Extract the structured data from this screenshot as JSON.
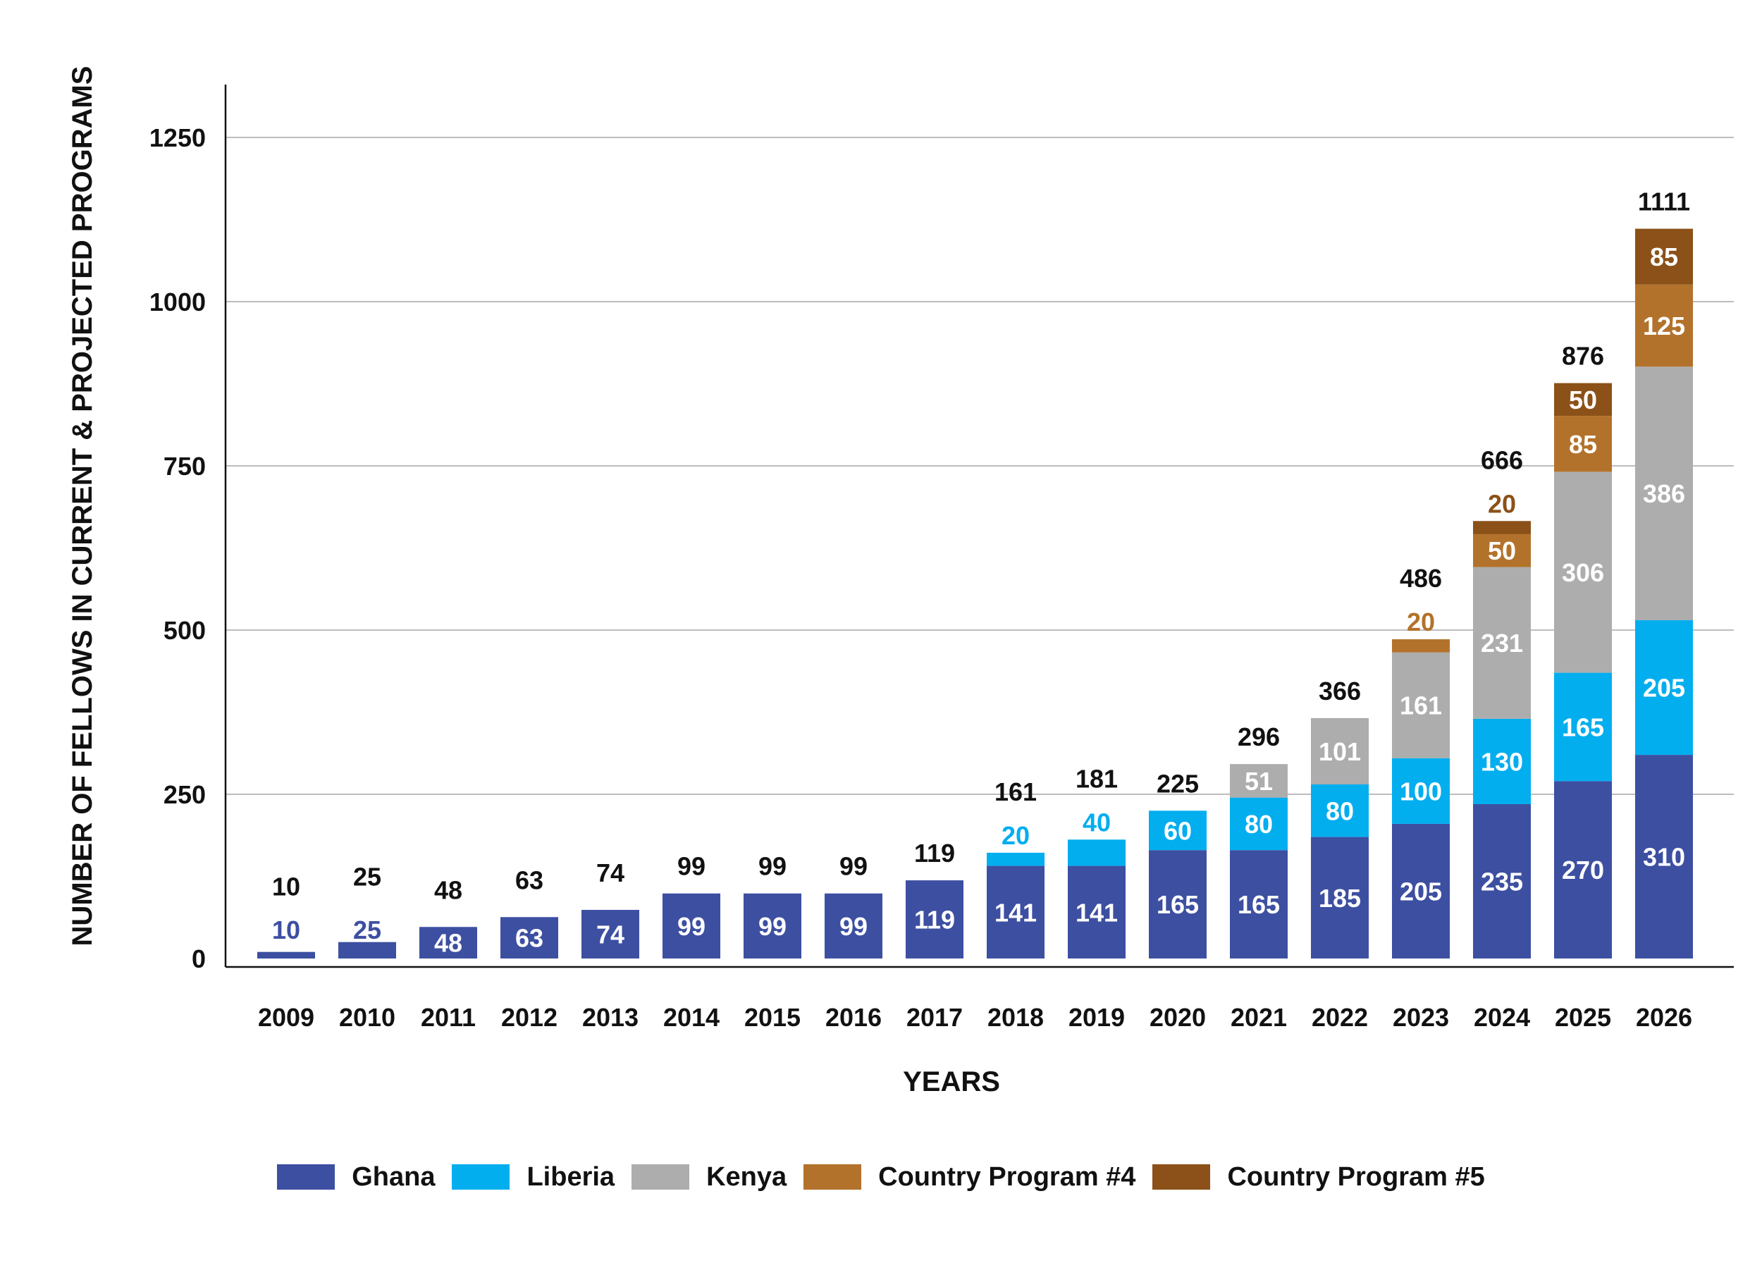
{
  "chart_data": {
    "type": "bar",
    "stacked": true,
    "title": "",
    "xlabel": "YEARS",
    "ylabel": "NUMBER OF FELLOWS IN CURRENT & PROJECTED PROGRAMS",
    "ylim": [
      0,
      1300
    ],
    "yticks": [
      0,
      250,
      500,
      750,
      1000,
      1250
    ],
    "grid": true,
    "legend_position": "bottom",
    "categories": [
      "2009",
      "2010",
      "2011",
      "2012",
      "2013",
      "2014",
      "2015",
      "2016",
      "2017",
      "2018",
      "2019",
      "2020",
      "2021",
      "2022",
      "2023",
      "2024",
      "2025",
      "2026"
    ],
    "series": [
      {
        "name": "Ghana",
        "color": "#3d4fa1",
        "label_color": "#ffffff",
        "values": [
          10,
          25,
          48,
          63,
          74,
          99,
          99,
          99,
          119,
          141,
          141,
          165,
          165,
          185,
          205,
          235,
          270,
          310
        ]
      },
      {
        "name": "Liberia",
        "color": "#03aeef",
        "label_color": "#ffffff",
        "values": [
          0,
          0,
          0,
          0,
          0,
          0,
          0,
          0,
          0,
          20,
          40,
          60,
          80,
          80,
          100,
          130,
          165,
          205
        ]
      },
      {
        "name": "Kenya",
        "color": "#adadad",
        "label_color": "#ffffff",
        "values": [
          0,
          0,
          0,
          0,
          0,
          0,
          0,
          0,
          0,
          0,
          0,
          0,
          51,
          101,
          161,
          231,
          306,
          386
        ]
      },
      {
        "name": "Country Program #4",
        "color": "#b3722b",
        "label_color": "#ffffff",
        "values": [
          0,
          0,
          0,
          0,
          0,
          0,
          0,
          0,
          0,
          0,
          0,
          0,
          0,
          0,
          20,
          50,
          85,
          125
        ]
      },
      {
        "name": "Country Program #5",
        "color": "#8b5118",
        "label_color": "#ffffff",
        "values": [
          0,
          0,
          0,
          0,
          0,
          0,
          0,
          0,
          0,
          0,
          0,
          0,
          0,
          0,
          0,
          20,
          50,
          85
        ]
      }
    ],
    "totals": [
      10,
      25,
      48,
      63,
      74,
      99,
      99,
      99,
      119,
      161,
      181,
      225,
      296,
      366,
      486,
      666,
      876,
      1111
    ],
    "outside_label_color": {
      "Ghana": "#3d4fa1",
      "Liberia": "#03aeef",
      "Country Program #4": "#b3722b"
    }
  }
}
